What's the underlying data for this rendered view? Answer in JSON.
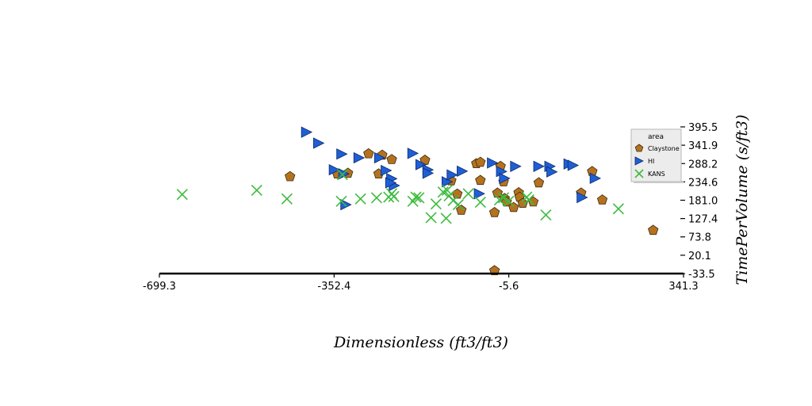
{
  "chart_data": {
    "type": "scatter",
    "xlabel": "Dimensionless (ft3/ft3)",
    "ylabel": "TimePerVolume (s/ft3)",
    "xlim": [
      -699.3,
      341.3
    ],
    "ylim": [
      -33.5,
      395.5
    ],
    "x_ticks": [
      "-699.3",
      "-352.4",
      "-5.6",
      "341.3"
    ],
    "y_ticks": [
      "-33.5",
      "20.1",
      "73.8",
      "127.4",
      "181.0",
      "234.6",
      "288.2",
      "341.9",
      "395.5"
    ],
    "y_axis_side": "right",
    "grid": false,
    "legend": {
      "title": "area",
      "position": "right",
      "entries": [
        "Claystone",
        "HI",
        "KANS"
      ]
    },
    "series": [
      {
        "name": "Claystone",
        "marker": "pentagon",
        "color": "#b5721e",
        "points": [
          [
            -440,
            250
          ],
          [
            -346,
            258
          ],
          [
            -325,
            260
          ],
          [
            -284,
            317
          ],
          [
            -264,
            258
          ],
          [
            -257,
            313
          ],
          [
            -238,
            300
          ],
          [
            -172,
            298
          ],
          [
            -120,
            238
          ],
          [
            -108,
            199
          ],
          [
            -100,
            152
          ],
          [
            -70,
            288
          ],
          [
            -62,
            292
          ],
          [
            -62,
            239
          ],
          [
            -34,
            145
          ],
          [
            -28,
            202
          ],
          [
            -22,
            280
          ],
          [
            -16,
            235
          ],
          [
            -14,
            186
          ],
          [
            -10,
            176
          ],
          [
            4,
            160
          ],
          [
            14,
            203
          ],
          [
            16,
            190
          ],
          [
            22,
            172
          ],
          [
            43,
            176
          ],
          [
            54,
            232
          ],
          [
            138,
            202
          ],
          [
            160,
            265
          ],
          [
            180,
            182
          ],
          [
            281,
            93
          ],
          [
            -34,
            -25
          ]
        ]
      },
      {
        "name": "HI",
        "marker": "triangle-right",
        "color": "#1f5fd6",
        "points": [
          [
            -407,
            380
          ],
          [
            -383,
            348
          ],
          [
            -352,
            270
          ],
          [
            -337,
            316
          ],
          [
            -333,
            258
          ],
          [
            -329,
            168
          ],
          [
            -303,
            305
          ],
          [
            -262,
            305
          ],
          [
            -249,
            268
          ],
          [
            -238,
            244
          ],
          [
            -233,
            224
          ],
          [
            -240,
            232
          ],
          [
            -196,
            318
          ],
          [
            -180,
            285
          ],
          [
            -166,
            270
          ],
          [
            -166,
            260
          ],
          [
            -128,
            235
          ],
          [
            -118,
            255
          ],
          [
            -98,
            266
          ],
          [
            -64,
            200
          ],
          [
            -38,
            290
          ],
          [
            -20,
            265
          ],
          [
            -14,
            245
          ],
          [
            8,
            280
          ],
          [
            54,
            280
          ],
          [
            76,
            280
          ],
          [
            80,
            264
          ],
          [
            114,
            287
          ],
          [
            122,
            283
          ],
          [
            140,
            189
          ],
          [
            166,
            245
          ]
        ]
      },
      {
        "name": "KANS",
        "marker": "x",
        "color": "#3dbb3d",
        "points": [
          [
            -654,
            198
          ],
          [
            -506,
            210
          ],
          [
            -446,
            185
          ],
          [
            -338,
            178
          ],
          [
            -336,
            256
          ],
          [
            -300,
            185
          ],
          [
            -268,
            188
          ],
          [
            -244,
            190
          ],
          [
            -238,
            200
          ],
          [
            -234,
            192
          ],
          [
            -196,
            178
          ],
          [
            -190,
            190
          ],
          [
            -184,
            188
          ],
          [
            -160,
            130
          ],
          [
            -150,
            170
          ],
          [
            -136,
            205
          ],
          [
            -128,
            210
          ],
          [
            -124,
            194
          ],
          [
            -116,
            180
          ],
          [
            -106,
            168
          ],
          [
            -86,
            200
          ],
          [
            -62,
            175
          ],
          [
            -24,
            182
          ],
          [
            -16,
            188
          ],
          [
            -6,
            178
          ],
          [
            30,
            190
          ],
          [
            34,
            182
          ],
          [
            68,
            138
          ],
          [
            212,
            156
          ],
          [
            -130,
            128
          ]
        ]
      }
    ]
  }
}
